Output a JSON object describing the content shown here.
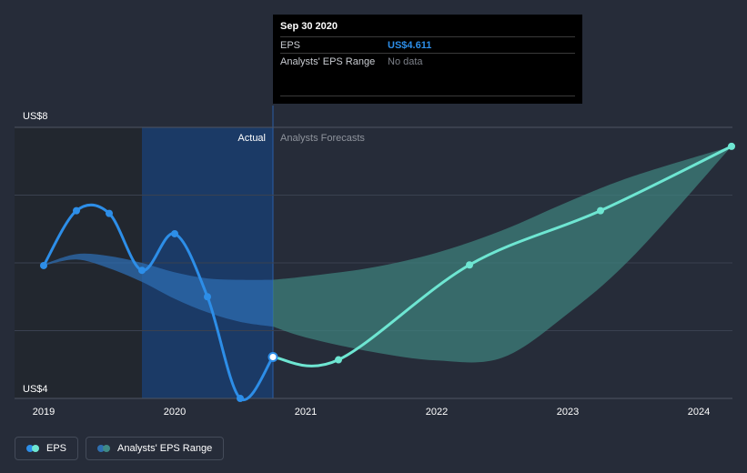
{
  "tooltip": {
    "date": "Sep 30 2020",
    "rows": [
      {
        "label": "EPS",
        "value": "US$4.611"
      },
      {
        "label": "Analysts' EPS Range",
        "value": "No data"
      }
    ]
  },
  "section_labels": {
    "actual": "Actual",
    "forecast": "Analysts Forecasts"
  },
  "legend": [
    {
      "label": "EPS",
      "colors": [
        "#2d8ee8",
        "#6ee6d2"
      ]
    },
    {
      "label": "Analysts' EPS Range",
      "colors": [
        "#2f6fb0",
        "#3f8a86"
      ]
    }
  ],
  "colors": {
    "background": "#262c39",
    "eps_actual": "#2d8ee8",
    "eps_forecast": "#6ee6d2",
    "range_actual": "#2d6cb0",
    "range_forecast": "#3f857f",
    "actual_highlight": "#1b3a66"
  },
  "chart_data": {
    "type": "line",
    "y_axis": {
      "min": 4,
      "max": 8,
      "tick_labels": [
        "US$4",
        "US$8"
      ],
      "gridlines": [
        4,
        5,
        6,
        7,
        8
      ]
    },
    "x_axis": {
      "min": 2019,
      "max": 2024.25,
      "ticks": [
        "2019",
        "2020",
        "2021",
        "2022",
        "2023",
        "2024"
      ]
    },
    "actual_end": 2020.75,
    "highlight_start": 2019.75,
    "series": [
      {
        "name": "EPS",
        "part": "actual",
        "points": [
          {
            "x": 2019.0,
            "y": 5.96
          },
          {
            "x": 2019.25,
            "y": 6.77
          },
          {
            "x": 2019.5,
            "y": 6.73
          },
          {
            "x": 2019.75,
            "y": 5.89
          },
          {
            "x": 2020.0,
            "y": 6.43
          },
          {
            "x": 2020.25,
            "y": 5.5
          },
          {
            "x": 2020.5,
            "y": 4.0
          },
          {
            "x": 2020.75,
            "y": 4.611
          }
        ]
      },
      {
        "name": "EPS",
        "part": "forecast",
        "points": [
          {
            "x": 2020.75,
            "y": 4.611
          },
          {
            "x": 2021.25,
            "y": 4.57
          },
          {
            "x": 2022.25,
            "y": 5.97
          },
          {
            "x": 2023.25,
            "y": 6.77
          },
          {
            "x": 2024.25,
            "y": 7.72
          }
        ]
      }
    ],
    "range_actual": {
      "x": [
        2019.0,
        2019.25,
        2019.5,
        2019.75,
        2020.0,
        2020.25,
        2020.5,
        2020.75
      ],
      "upper": [
        5.98,
        6.13,
        6.1,
        6.0,
        5.86,
        5.77,
        5.75,
        5.75
      ],
      "lower": [
        5.96,
        6.05,
        5.92,
        5.72,
        5.47,
        5.27,
        5.13,
        5.06
      ]
    },
    "range_forecast": {
      "x": [
        2020.75,
        2021.0,
        2021.5,
        2022.0,
        2022.5,
        2023.0,
        2023.5,
        2024.25
      ],
      "upper": [
        5.75,
        5.8,
        5.93,
        6.15,
        6.48,
        6.9,
        7.28,
        7.72
      ],
      "lower": [
        5.06,
        4.9,
        4.69,
        4.56,
        4.6,
        5.25,
        6.1,
        7.72
      ]
    }
  }
}
